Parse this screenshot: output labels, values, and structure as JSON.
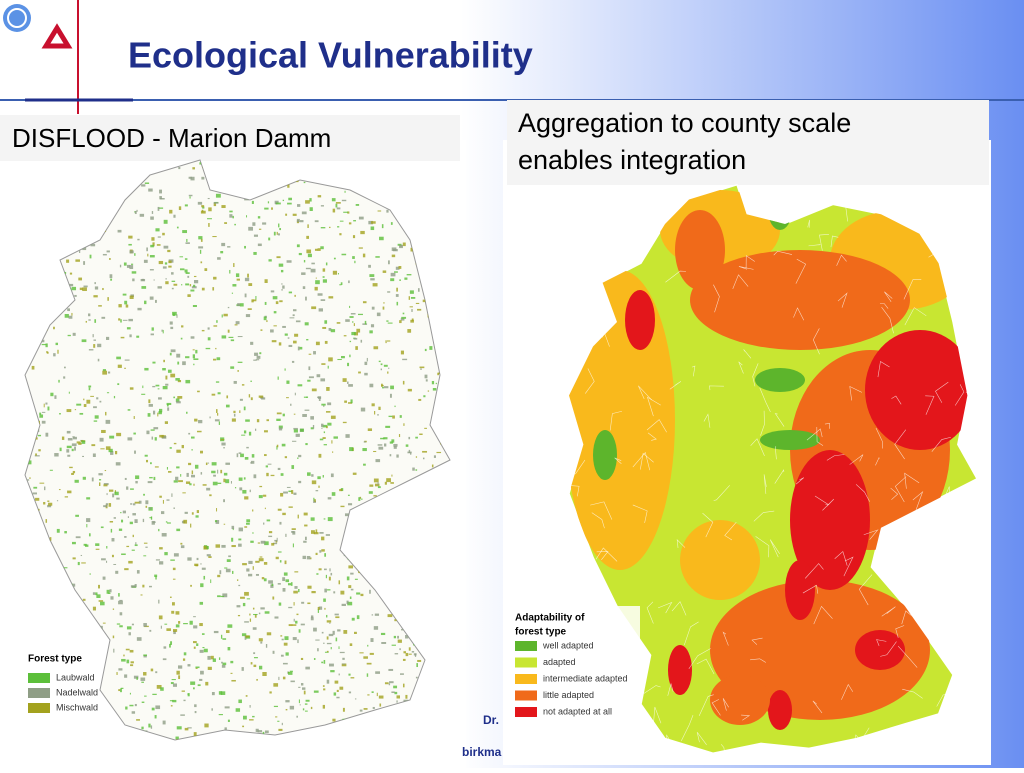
{
  "header": {
    "title": "Ecological Vulnerability"
  },
  "left_panel": {
    "label": "DISFLOOD - Marion Damm",
    "legend": {
      "title": "Forest type",
      "items": [
        {
          "label": "Laubwald",
          "color": "#5cbf3a"
        },
        {
          "label": "Nadelwald",
          "color": "#8f9e86"
        },
        {
          "label": "Mischwald",
          "color": "#a3a21e"
        }
      ]
    }
  },
  "right_panel": {
    "label_lines": [
      "Aggregation to county scale",
      "enables integration"
    ],
    "legend": {
      "title_lines": [
        "Adaptability of",
        "forest type"
      ],
      "items": [
        {
          "label": "well adapted",
          "color": "#5db52c"
        },
        {
          "label": "adapted",
          "color": "#c8e632"
        },
        {
          "label": "intermediate adapted",
          "color": "#f9b91c"
        },
        {
          "label": "little adapted",
          "color": "#f06a1a"
        },
        {
          "label": "not adapted at all",
          "color": "#e3161b"
        }
      ]
    }
  },
  "footer": {
    "author_fragment": "Dr.",
    "email_fragment": "birkma"
  }
}
